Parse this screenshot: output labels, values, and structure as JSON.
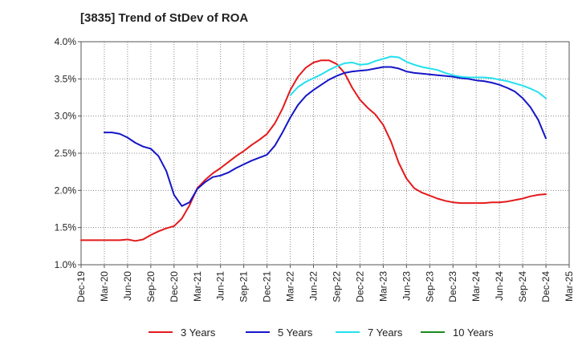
{
  "chart_data": {
    "type": "line",
    "title": "[3835]  Trend of StDev of ROA",
    "xlabel": "",
    "ylabel": "",
    "ylim": [
      1.0,
      4.0
    ],
    "y_ticks": [
      "1.0%",
      "1.5%",
      "2.0%",
      "2.5%",
      "3.0%",
      "3.5%",
      "4.0%"
    ],
    "y_tick_values": [
      1.0,
      1.5,
      2.0,
      2.5,
      3.0,
      3.5,
      4.0
    ],
    "x_ticks": [
      "Dec-19",
      "Mar-20",
      "Jun-20",
      "Sep-20",
      "Dec-20",
      "Mar-21",
      "Jun-21",
      "Sep-21",
      "Dec-21",
      "Mar-22",
      "Jun-22",
      "Sep-22",
      "Dec-22",
      "Mar-23",
      "Jun-23",
      "Sep-23",
      "Dec-23",
      "Mar-24",
      "Jun-24",
      "Sep-24",
      "Dec-24",
      "Mar-25"
    ],
    "grid": true,
    "legend_position": "bottom",
    "series": [
      {
        "name": "3 Years",
        "color": "#e31a1c",
        "x": [
          0,
          1,
          2,
          3,
          4,
          5,
          6,
          7,
          8,
          9,
          10,
          11,
          12,
          13,
          14,
          15,
          16,
          17,
          18,
          19,
          20,
          21,
          22,
          23,
          24,
          25,
          26,
          27,
          28,
          29,
          30,
          31,
          32,
          33,
          34,
          35,
          36,
          37,
          38,
          39,
          40,
          41,
          42,
          43,
          44,
          45,
          46,
          47,
          48,
          49,
          50,
          51,
          52,
          53,
          54,
          55,
          56,
          57,
          58,
          59,
          60
        ],
        "values": [
          1.33,
          1.33,
          1.33,
          1.33,
          1.33,
          1.33,
          1.34,
          1.32,
          1.34,
          1.4,
          1.45,
          1.49,
          1.52,
          1.62,
          1.8,
          2.03,
          2.14,
          2.23,
          2.3,
          2.38,
          2.46,
          2.53,
          2.61,
          2.68,
          2.76,
          2.9,
          3.1,
          3.35,
          3.53,
          3.65,
          3.72,
          3.75,
          3.75,
          3.7,
          3.58,
          3.38,
          3.22,
          3.11,
          3.02,
          2.88,
          2.66,
          2.37,
          2.16,
          2.03,
          1.97,
          1.93,
          1.89,
          1.86,
          1.84,
          1.83,
          1.83,
          1.83,
          1.83,
          1.84,
          1.84,
          1.85,
          1.87,
          1.89,
          1.92,
          1.94,
          1.95
        ]
      },
      {
        "name": "5 Years",
        "color": "#1515c8",
        "x": [
          3,
          4,
          5,
          6,
          7,
          8,
          9,
          10,
          11,
          12,
          13,
          14,
          15,
          16,
          17,
          18,
          19,
          20,
          21,
          22,
          23,
          24,
          25,
          26,
          27,
          28,
          29,
          30,
          31,
          32,
          33,
          34,
          35,
          36,
          37,
          38,
          39,
          40,
          41,
          42,
          43,
          44,
          45,
          46,
          47,
          48,
          49,
          50,
          51,
          52,
          53,
          54,
          55,
          56,
          57,
          58,
          59,
          60
        ],
        "values": [
          2.78,
          2.78,
          2.76,
          2.71,
          2.64,
          2.59,
          2.56,
          2.46,
          2.26,
          1.94,
          1.79,
          1.84,
          2.02,
          2.11,
          2.18,
          2.2,
          2.24,
          2.3,
          2.35,
          2.4,
          2.44,
          2.48,
          2.6,
          2.78,
          2.98,
          3.15,
          3.27,
          3.35,
          3.42,
          3.49,
          3.54,
          3.58,
          3.6,
          3.61,
          3.62,
          3.64,
          3.66,
          3.66,
          3.64,
          3.6,
          3.58,
          3.57,
          3.56,
          3.55,
          3.54,
          3.53,
          3.51,
          3.5,
          3.48,
          3.47,
          3.45,
          3.42,
          3.38,
          3.33,
          3.24,
          3.12,
          2.95,
          2.7
        ]
      },
      {
        "name": "7 Years",
        "color": "#22e0ee",
        "x": [
          27,
          28,
          29,
          30,
          31,
          32,
          33,
          34,
          35,
          36,
          37,
          38,
          39,
          40,
          41,
          42,
          43,
          44,
          45,
          46,
          47,
          48,
          49,
          50,
          51,
          52,
          53,
          54,
          55,
          56,
          57,
          58,
          59,
          60
        ],
        "values": [
          3.28,
          3.39,
          3.46,
          3.51,
          3.56,
          3.62,
          3.67,
          3.71,
          3.72,
          3.69,
          3.7,
          3.74,
          3.77,
          3.8,
          3.79,
          3.73,
          3.69,
          3.66,
          3.64,
          3.62,
          3.58,
          3.55,
          3.53,
          3.52,
          3.52,
          3.52,
          3.51,
          3.49,
          3.47,
          3.44,
          3.41,
          3.37,
          3.32,
          3.24
        ]
      },
      {
        "name": "10 Years",
        "color": "#1a8c1a",
        "x": [],
        "values": []
      }
    ]
  }
}
